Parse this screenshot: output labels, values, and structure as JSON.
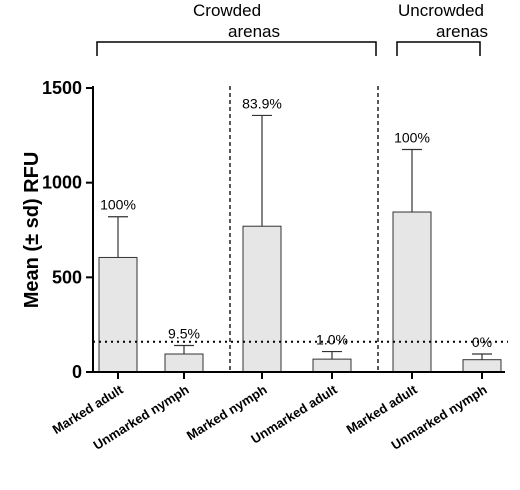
{
  "chart_data": {
    "type": "bar",
    "ylabel": "Mean (± sd) RFU",
    "ylim": [
      0,
      1500
    ],
    "yticks": [
      0,
      500,
      1000,
      1500
    ],
    "threshold": 160,
    "groups": [
      {
        "label_line1": "Crowded",
        "label_line2": "arenas",
        "start": 0,
        "end": 3
      },
      {
        "label_line1": "Uncrowded",
        "label_line2": "arenas",
        "start": 4,
        "end": 5
      }
    ],
    "categories": [
      "Marked adult",
      "Unmarked nymph",
      "Marked nymph",
      "Unmarked adult",
      "Marked adult",
      "Unmarked nymph"
    ],
    "values": [
      605,
      95,
      770,
      68,
      845,
      65
    ],
    "sd": [
      215,
      45,
      585,
      40,
      330,
      30
    ],
    "percent_labels": [
      "100%",
      "9.5%",
      "83.9%",
      "1.0%",
      "100%",
      "0%"
    ],
    "colors": {
      "bar_fill": "#e6e6e6",
      "bar_stroke": "#333333"
    }
  }
}
